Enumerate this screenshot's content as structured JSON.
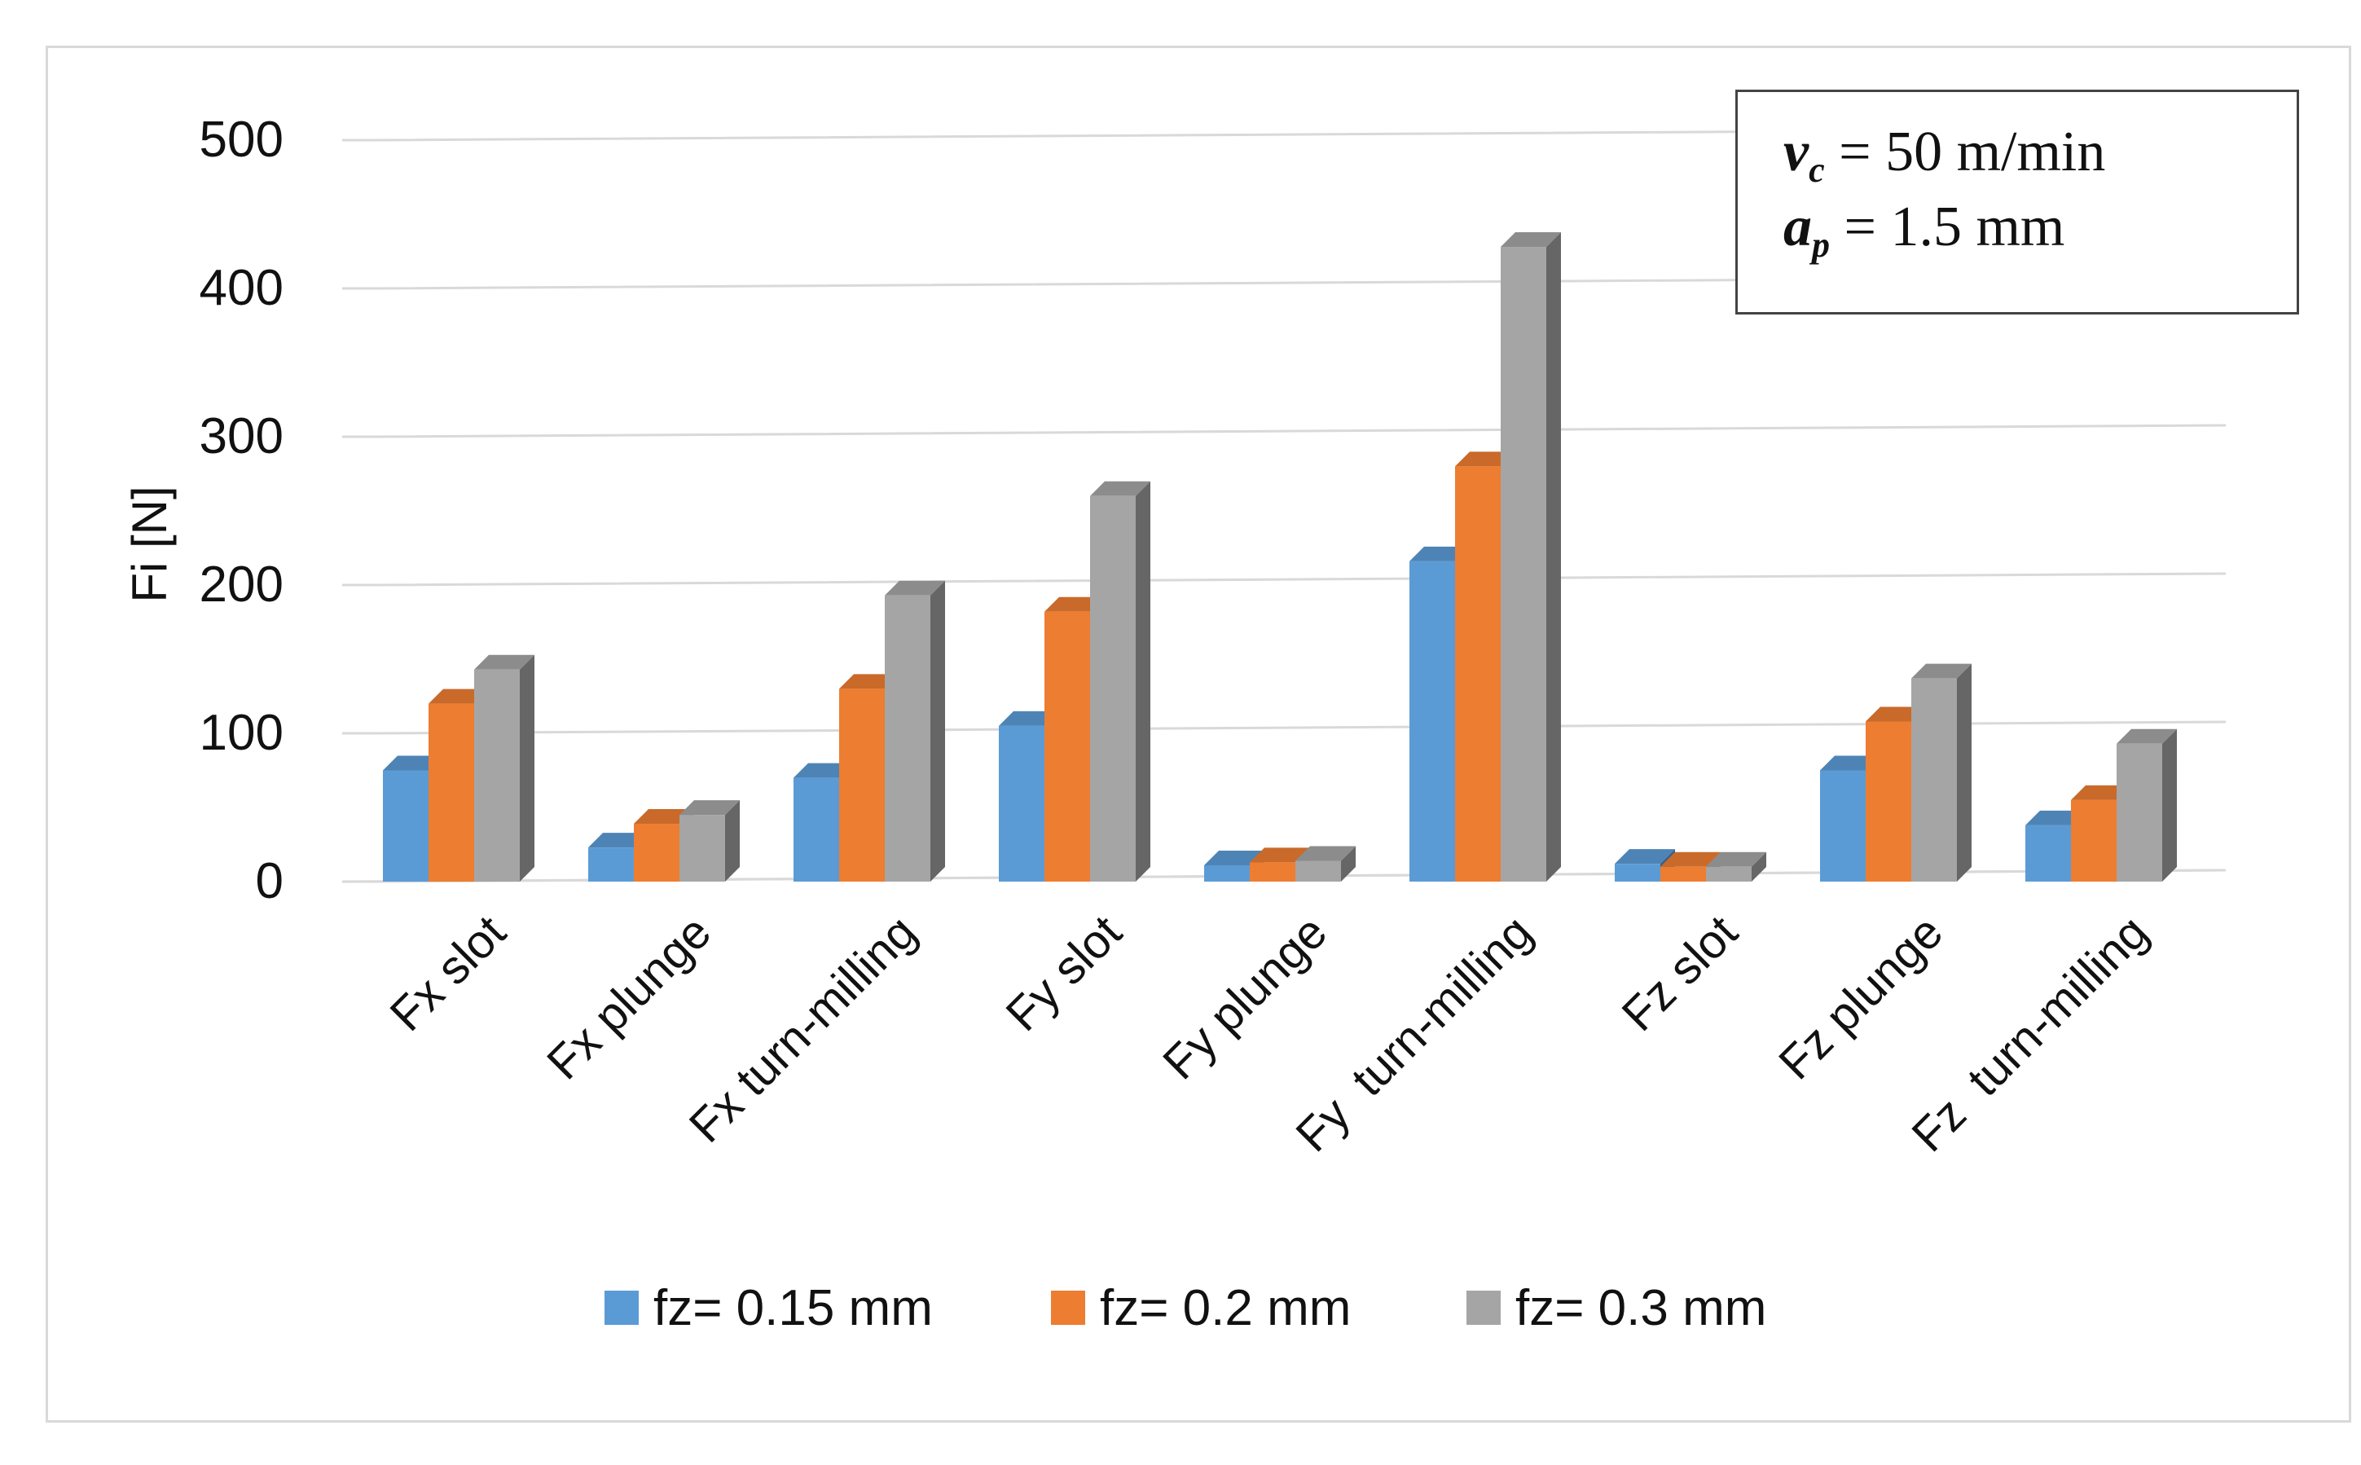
{
  "chart_data": {
    "type": "bar",
    "style": "3d-clustered-column",
    "title": "",
    "xlabel": "",
    "ylabel": "Fi [N]",
    "ylim": [
      0,
      500
    ],
    "yticks": [
      0,
      100,
      200,
      300,
      400,
      500
    ],
    "grid": true,
    "legend_position": "bottom",
    "categories": [
      "Fx slot",
      "Fx plunge",
      "Fx turn-milling",
      "Fy slot",
      "Fy plunge",
      "Fy  turn-milling",
      "Fz slot",
      "Fz plunge",
      "Fz  turn-milling"
    ],
    "series": [
      {
        "name": "fz= 0.15 mm",
        "color": "#5b9bd5",
        "values": [
          75,
          23,
          70,
          105,
          11,
          216,
          12,
          75,
          38
        ]
      },
      {
        "name": "fz= 0.2 mm",
        "color": "#ed7d31",
        "values": [
          120,
          39,
          130,
          182,
          13,
          280,
          10,
          108,
          55
        ]
      },
      {
        "name": "fz= 0.3 mm",
        "color": "#a5a5a5",
        "values": [
          143,
          45,
          193,
          260,
          14,
          428,
          10,
          137,
          93
        ]
      }
    ],
    "annotation": {
      "line1_symbol": "v",
      "line1_subscript": "c",
      "line1_value": "= 50 m/min",
      "line2_symbol": "a",
      "line2_subscript": "p",
      "line2_value": "= 1.5 mm"
    }
  }
}
